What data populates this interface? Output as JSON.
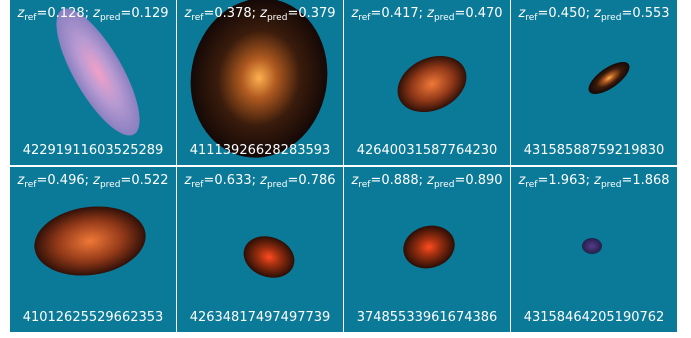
{
  "label_parts": {
    "symbol": "z",
    "ref": "ref",
    "pred": "pred",
    "equals": "=",
    "separator": ";"
  },
  "panels": [
    {
      "z_ref": "0.128",
      "z_pred": "0.129",
      "id": "42291911603525289"
    },
    {
      "z_ref": "0.378",
      "z_pred": "0.379",
      "id": "41113926628283593"
    },
    {
      "z_ref": "0.417",
      "z_pred": "0.470",
      "id": "42640031587764230"
    },
    {
      "z_ref": "0.450",
      "z_pred": "0.553",
      "id": "43158588759219830"
    },
    {
      "z_ref": "0.496",
      "z_pred": "0.522",
      "id": "41012625529662353"
    },
    {
      "z_ref": "0.633",
      "z_pred": "0.786",
      "id": "42634817497497739"
    },
    {
      "z_ref": "0.888",
      "z_pred": "0.890",
      "id": "37485533961674386"
    },
    {
      "z_ref": "1.963",
      "z_pred": "1.868",
      "id": "43158464205190762"
    }
  ]
}
